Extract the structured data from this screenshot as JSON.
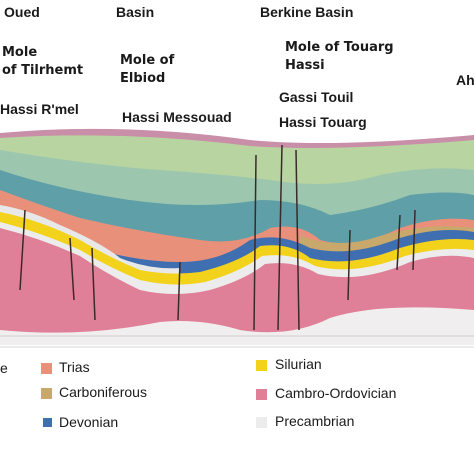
{
  "labels": {
    "oued": "Oued",
    "basin": "Basin",
    "berkine_basin": "Berkine Basin",
    "mole_tilrhemt_1": "Mole",
    "mole_tilrhemt_2": "of Tilrhemt",
    "mole_elbiod_1": "Mole of",
    "mole_elbiod_2": "Elbiod",
    "mole_touarg_1": "Mole of Touarg",
    "mole_touarg_2": "Hassi",
    "hassi_rmel": "Hassi R'mel",
    "hassi_messouad": "Hassi Messouad",
    "gassi_touil": "Gassi Touil",
    "hassi_touarg": "Hassi Touarg",
    "ah": "Ah"
  },
  "legend": {
    "e": "e",
    "trias": "Trias",
    "carboniferous": "Carboniferous",
    "devonian": "Devonian",
    "silurian": "Silurian",
    "cambro_ordovician": "Cambro-Ordovician",
    "precambrian": "Precambrian"
  },
  "colors": {
    "trias": "#e8907a",
    "carboniferous": "#c9a86b",
    "devonian": "#3f6fb0",
    "silurian": "#f2d21a",
    "cambro_ordovician": "#e07f98",
    "precambrian": "#ececec",
    "cretaceous_top": "#b8d4a0",
    "jurassic": "#9fc7b0"
  }
}
